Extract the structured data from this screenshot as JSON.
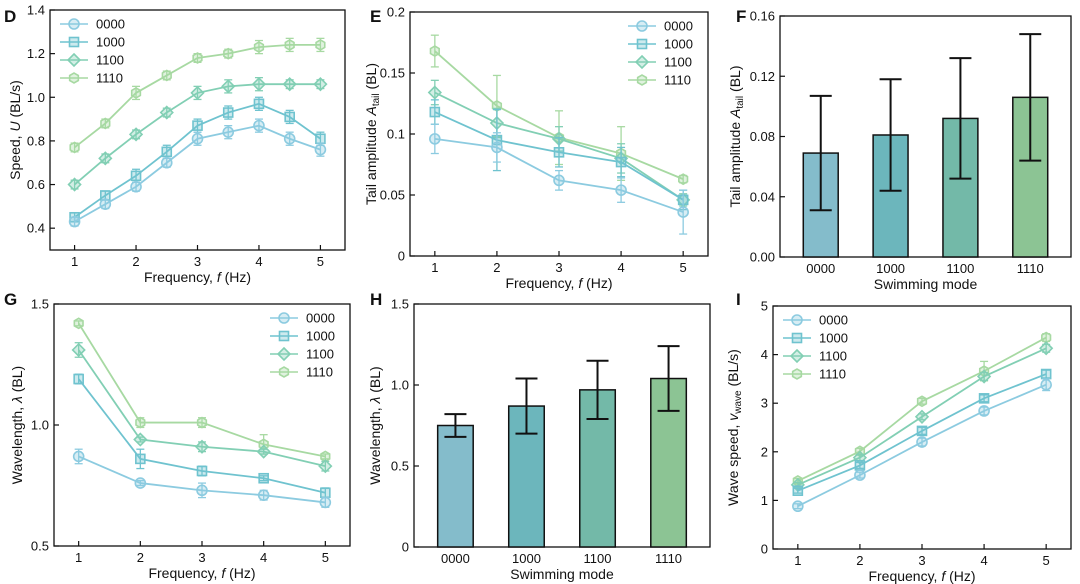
{
  "colors": {
    "0000": "#8ccbe0",
    "1000": "#6fc3cf",
    "1100": "#82cfb4",
    "1110": "#a7d9a2",
    "bar_0000": "#84bccb",
    "bar_1000": "#6cb6bc",
    "bar_1100": "#73b9a8",
    "bar_1110": "#8cc494"
  },
  "chart_data": [
    {
      "id": "D",
      "letter": "D",
      "type": "line",
      "xlabel_parts": [
        "Frequency, ",
        "f",
        " (Hz)"
      ],
      "ylabel_parts": [
        "Speed, ",
        "U",
        " (BL/s)"
      ],
      "xlim": [
        0.6,
        5.4
      ],
      "ylim": [
        0.3,
        1.4
      ],
      "xticks": [
        1,
        2,
        3,
        4,
        5
      ],
      "xtick_labels": [
        "1",
        "2",
        "3",
        "4",
        "5"
      ],
      "yticks": [
        0.4,
        0.6,
        0.8,
        1.0,
        1.2,
        1.4
      ],
      "ytick_labels": [
        "0.4",
        "0.6",
        "0.8",
        "1.0",
        "1.2",
        "1.4"
      ],
      "legend_position": "top-left",
      "x": [
        1,
        1.5,
        2,
        2.5,
        3,
        3.5,
        4,
        4.5,
        5
      ],
      "series": [
        {
          "name": "0000",
          "marker": "circle",
          "values": [
            0.43,
            0.51,
            0.59,
            0.7,
            0.81,
            0.84,
            0.87,
            0.81,
            0.76
          ],
          "err": [
            0.02,
            0.02,
            0.02,
            0.02,
            0.03,
            0.03,
            0.03,
            0.03,
            0.03
          ]
        },
        {
          "name": "1000",
          "marker": "square",
          "values": [
            0.45,
            0.55,
            0.64,
            0.75,
            0.87,
            0.93,
            0.97,
            0.91,
            0.81
          ],
          "err": [
            0.02,
            0.02,
            0.03,
            0.03,
            0.03,
            0.03,
            0.03,
            0.03,
            0.03
          ]
        },
        {
          "name": "1100",
          "marker": "diamond",
          "values": [
            0.6,
            0.72,
            0.83,
            0.93,
            1.02,
            1.05,
            1.06,
            1.06,
            1.06
          ],
          "err": [
            0.02,
            0.02,
            0.02,
            0.02,
            0.03,
            0.03,
            0.03,
            0.02,
            0.02
          ]
        },
        {
          "name": "1110",
          "marker": "hexagon",
          "values": [
            0.77,
            0.88,
            1.02,
            1.1,
            1.18,
            1.2,
            1.23,
            1.24,
            1.24
          ],
          "err": [
            0.02,
            0.02,
            0.03,
            0.02,
            0.02,
            0.02,
            0.03,
            0.03,
            0.03
          ]
        }
      ]
    },
    {
      "id": "E",
      "letter": "E",
      "type": "line",
      "xlabel_parts": [
        "Frequency, ",
        "f",
        " (Hz)"
      ],
      "ylabel_parts": [
        "Tail amplitude ",
        "A",
        "tail",
        " (BL)"
      ],
      "xlim": [
        0.6,
        5.4
      ],
      "ylim": [
        0,
        0.2
      ],
      "xticks": [
        1,
        2,
        3,
        4,
        5
      ],
      "xtick_labels": [
        "1",
        "2",
        "3",
        "4",
        "5"
      ],
      "yticks": [
        0,
        0.05,
        0.1,
        0.15,
        0.2
      ],
      "ytick_labels": [
        "0",
        "0.05",
        "0.1",
        "0.15",
        "0.2"
      ],
      "legend_position": "top-right",
      "x": [
        1,
        2,
        3,
        4,
        5
      ],
      "series": [
        {
          "name": "0000",
          "marker": "circle",
          "values": [
            0.096,
            0.089,
            0.062,
            0.054,
            0.036
          ],
          "err": [
            0.012,
            0.012,
            0.008,
            0.01,
            0.018
          ]
        },
        {
          "name": "1000",
          "marker": "square",
          "values": [
            0.118,
            0.095,
            0.085,
            0.077,
            0.046
          ],
          "err": [
            0.01,
            0.025,
            0.012,
            0.012,
            0.008
          ]
        },
        {
          "name": "1100",
          "marker": "diamond",
          "values": [
            0.134,
            0.109,
            0.096,
            0.08,
            0.046
          ],
          "err": [
            0.01,
            0.012,
            0.01,
            0.012,
            0.005
          ]
        },
        {
          "name": "1110",
          "marker": "hexagon",
          "values": [
            0.168,
            0.123,
            0.097,
            0.084,
            0.063
          ],
          "err": [
            0.013,
            0.025,
            0.022,
            0.022,
            0.003
          ]
        }
      ]
    },
    {
      "id": "F",
      "letter": "F",
      "type": "bar",
      "xlabel_parts": [
        "Swimming mode"
      ],
      "ylabel_parts": [
        "Tail amplitude ",
        "A",
        "tail",
        " (BL)"
      ],
      "ylim": [
        0,
        0.16
      ],
      "yticks": [
        0,
        0.04,
        0.08,
        0.12,
        0.16
      ],
      "ytick_labels": [
        "0.00",
        "0.04",
        "0.08",
        "0.12",
        "0.16"
      ],
      "categories": [
        "0000",
        "1000",
        "1100",
        "1110"
      ],
      "values": [
        0.069,
        0.081,
        0.092,
        0.106
      ],
      "err": [
        0.038,
        0.037,
        0.04,
        0.042
      ]
    },
    {
      "id": "G",
      "letter": "G",
      "type": "line",
      "xlabel_parts": [
        "Frequency, ",
        "f",
        " (Hz)"
      ],
      "ylabel_parts": [
        "Wavelength, ",
        "λ",
        " (BL)"
      ],
      "xlim": [
        0.6,
        5.4
      ],
      "ylim": [
        0.5,
        1.5
      ],
      "xticks": [
        1,
        2,
        3,
        4,
        5
      ],
      "xtick_labels": [
        "1",
        "2",
        "3",
        "4",
        "5"
      ],
      "yticks": [
        0.5,
        1.0,
        1.5
      ],
      "ytick_labels": [
        "0.5",
        "1.0",
        "1.5"
      ],
      "legend_position": "top-right",
      "x": [
        1,
        2,
        3,
        4,
        5
      ],
      "series": [
        {
          "name": "0000",
          "marker": "circle",
          "values": [
            0.87,
            0.76,
            0.73,
            0.71,
            0.68
          ],
          "err": [
            0.03,
            0.01,
            0.03,
            0.02,
            0.02
          ]
        },
        {
          "name": "1000",
          "marker": "square",
          "values": [
            1.19,
            0.86,
            0.81,
            0.78,
            0.72
          ],
          "err": [
            0.02,
            0.04,
            0.02,
            0.01,
            0.02
          ]
        },
        {
          "name": "1100",
          "marker": "diamond",
          "values": [
            1.31,
            0.94,
            0.91,
            0.89,
            0.83
          ],
          "err": [
            0.03,
            0.01,
            0.02,
            0.01,
            0.02
          ]
        },
        {
          "name": "1110",
          "marker": "hexagon",
          "values": [
            1.42,
            1.01,
            1.01,
            0.92,
            0.87
          ],
          "err": [
            0.01,
            0.02,
            0.02,
            0.04,
            0.01
          ]
        }
      ]
    },
    {
      "id": "H",
      "letter": "H",
      "type": "bar",
      "xlabel_parts": [
        "Swimming mode"
      ],
      "ylabel_parts": [
        "Wavelength, ",
        "λ",
        " (BL)"
      ],
      "ylim": [
        0,
        1.5
      ],
      "yticks": [
        0,
        0.5,
        1.0,
        1.5
      ],
      "ytick_labels": [
        "0",
        "0.5",
        "1.0",
        "1.5"
      ],
      "categories": [
        "0000",
        "1000",
        "1100",
        "1110"
      ],
      "values": [
        0.75,
        0.87,
        0.97,
        1.04
      ],
      "err": [
        0.07,
        0.17,
        0.18,
        0.2
      ]
    },
    {
      "id": "I",
      "letter": "I",
      "type": "line",
      "xlabel_parts": [
        "Frequency, ",
        "f",
        " (Hz)"
      ],
      "ylabel_parts": [
        "Wave speed, ",
        "v",
        "wave",
        " (BL/s)"
      ],
      "xlim": [
        0.6,
        5.4
      ],
      "ylim": [
        0,
        5
      ],
      "xticks": [
        1,
        2,
        3,
        4,
        5
      ],
      "xtick_labels": [
        "1",
        "2",
        "3",
        "4",
        "5"
      ],
      "yticks": [
        0,
        1,
        2,
        3,
        4,
        5
      ],
      "ytick_labels": [
        "0",
        "1",
        "2",
        "3",
        "4",
        "5"
      ],
      "legend_position": "top-left",
      "x": [
        1,
        2,
        3,
        4,
        5
      ],
      "series": [
        {
          "name": "0000",
          "marker": "circle",
          "values": [
            0.88,
            1.52,
            2.2,
            2.84,
            3.38
          ],
          "err": [
            0.05,
            0.06,
            0.08,
            0.08,
            0.12
          ]
        },
        {
          "name": "1000",
          "marker": "square",
          "values": [
            1.2,
            1.72,
            2.43,
            3.1,
            3.6
          ],
          "err": [
            0.05,
            0.06,
            0.07,
            0.07,
            0.08
          ]
        },
        {
          "name": "1100",
          "marker": "diamond",
          "values": [
            1.32,
            1.88,
            2.72,
            3.55,
            4.13
          ],
          "err": [
            0.05,
            0.06,
            0.06,
            0.08,
            0.08
          ]
        },
        {
          "name": "1110",
          "marker": "hexagon",
          "values": [
            1.4,
            2.01,
            3.04,
            3.66,
            4.35
          ],
          "err": [
            0.05,
            0.06,
            0.06,
            0.2,
            0.08
          ]
        }
      ]
    }
  ]
}
